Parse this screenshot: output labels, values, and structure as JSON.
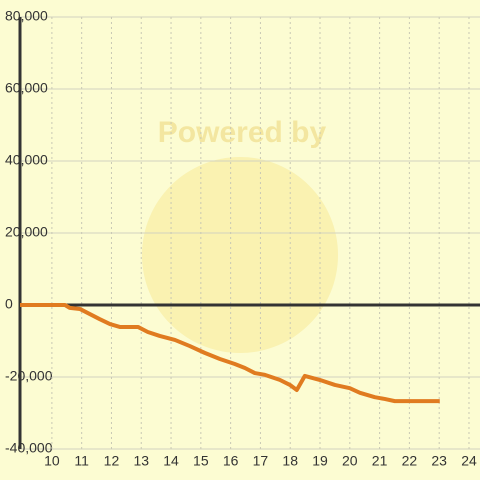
{
  "chart_data": {
    "type": "line",
    "watermark": "Powered by",
    "x": [
      8.93,
      10.44,
      10.6,
      10.94,
      11.2,
      11.6,
      11.95,
      12.28,
      12.89,
      13.22,
      13.62,
      14.13,
      14.63,
      15.13,
      15.64,
      16.14,
      16.48,
      16.81,
      17.15,
      17.65,
      17.99,
      18.22,
      18.49,
      18.99,
      19.5,
      20,
      20.34,
      20.84,
      21.17,
      21.51,
      23.02
    ],
    "series": [
      {
        "color": "#e07b20",
        "values": [
          0,
          0,
          -800,
          -1100,
          -2200,
          -3900,
          -5300,
          -6100,
          -6100,
          -7500,
          -8600,
          -9700,
          -11400,
          -13300,
          -15000,
          -16400,
          -17500,
          -18900,
          -19400,
          -20800,
          -22200,
          -23600,
          -19700,
          -20800,
          -22200,
          -23100,
          -24400,
          -25600,
          -26100,
          -26700,
          -26700
        ]
      }
    ],
    "xlim": [
      8.93,
      24.37
    ],
    "xticks": [
      10,
      11,
      12,
      13,
      14,
      15,
      16,
      17,
      18,
      19,
      20,
      21,
      22,
      23,
      24
    ],
    "ylim": [
      -40000,
      80000
    ],
    "yticks": [
      {
        "value": 80000,
        "label": "80,000"
      },
      {
        "value": 60000,
        "label": "60,000"
      },
      {
        "value": 40000,
        "label": "40,000"
      },
      {
        "value": 20000,
        "label": "20,000"
      },
      0,
      {
        "value": -20000,
        "label": "-20,000"
      },
      {
        "value": -40000,
        "label": "-40,000"
      }
    ],
    "grid": true
  }
}
